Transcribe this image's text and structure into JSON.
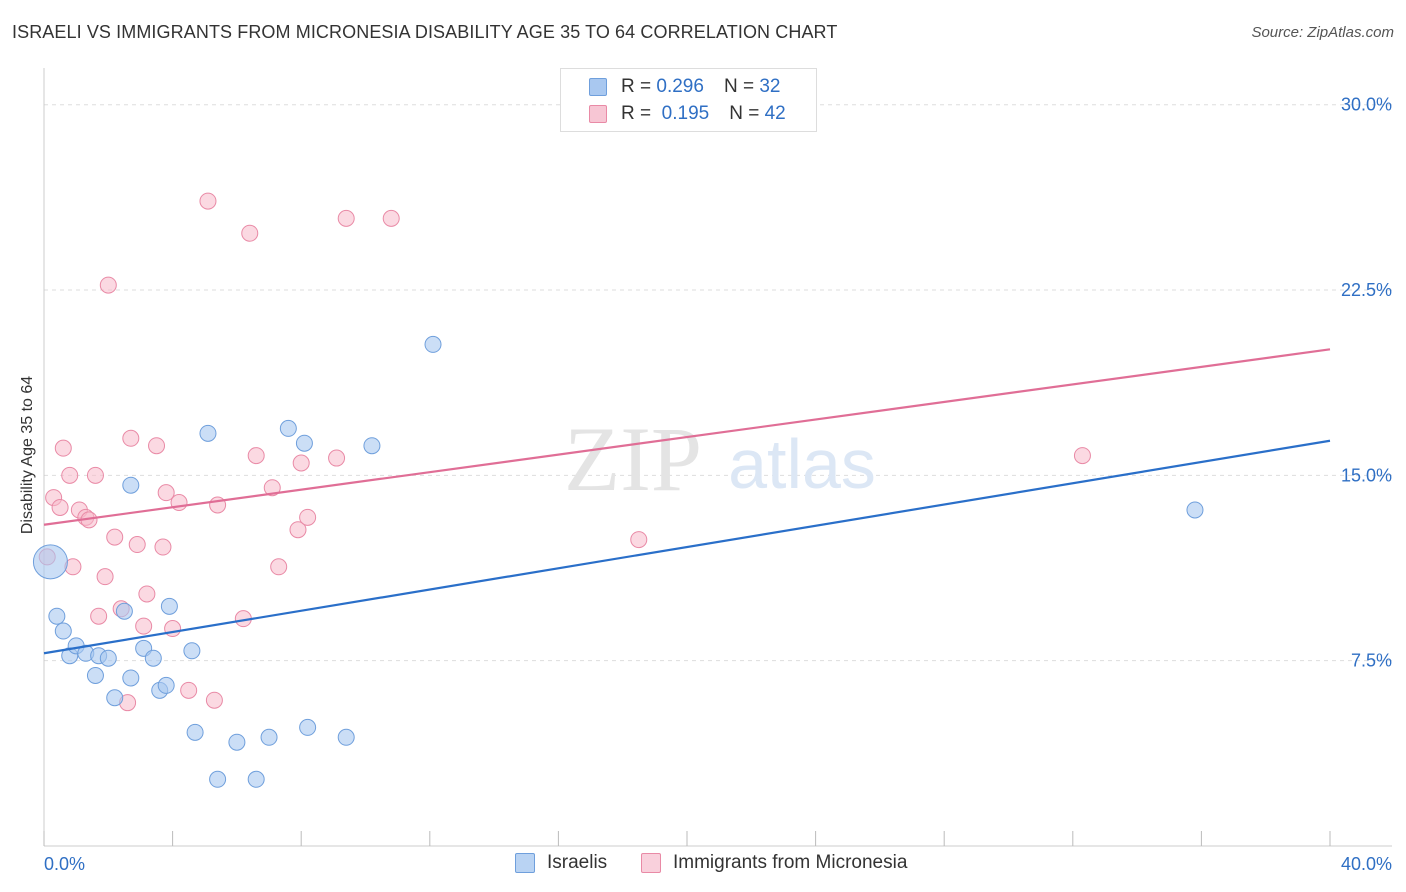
{
  "header": {
    "title": "ISRAELI VS IMMIGRANTS FROM MICRONESIA DISABILITY AGE 35 TO 64 CORRELATION CHART",
    "source": "Source: ZipAtlas.com"
  },
  "legend": {
    "r_label": "R =",
    "n_label": "N =",
    "series": [
      {
        "name": "Israelis",
        "r": "0.296",
        "n": "32"
      },
      {
        "name": "Immigrants from Micronesia",
        "r": "0.195",
        "n": "42"
      }
    ]
  },
  "watermark": {
    "zip": "ZIP",
    "atlas": "atlas"
  },
  "colors": {
    "blue_fill": "#a9c8f0",
    "blue_stroke": "#6f9fdc",
    "blue_line": "#2a6fc9",
    "pink_fill": "#f7b9cb",
    "pink_stroke": "#e98aa6",
    "pink_line": "#e06e96",
    "value_text": "#2f6fc4",
    "grid": "#dddddd"
  },
  "chart_data": {
    "type": "scatter",
    "title": "ISRAELI VS IMMIGRANTS FROM MICRONESIA DISABILITY AGE 35 TO 64 CORRELATION CHART",
    "xlabel": "",
    "ylabel": "Disability Age 35 to 64",
    "xlim": [
      0,
      40
    ],
    "ylim": [
      0,
      31
    ],
    "x_tick_labels": [
      {
        "value": 0,
        "label": "0.0%"
      },
      {
        "value": 40,
        "label": "40.0%"
      }
    ],
    "y_tick_labels": [
      {
        "value": 7.5,
        "label": "7.5%"
      },
      {
        "value": 15.0,
        "label": "15.0%"
      },
      {
        "value": 22.5,
        "label": "22.5%"
      },
      {
        "value": 30.0,
        "label": "30.0%"
      }
    ],
    "x_minor_ticks": [
      0,
      4,
      8,
      12,
      16,
      20,
      24,
      28,
      32,
      36,
      40
    ],
    "series": [
      {
        "name": "Israelis",
        "color": "blue",
        "trend": {
          "x": [
            0,
            40
          ],
          "y": [
            7.8,
            16.4
          ]
        },
        "points": [
          {
            "x": 0.2,
            "y": 11.5,
            "big": true
          },
          {
            "x": 0.4,
            "y": 9.3
          },
          {
            "x": 0.6,
            "y": 8.7
          },
          {
            "x": 0.8,
            "y": 7.7
          },
          {
            "x": 1.0,
            "y": 8.1
          },
          {
            "x": 1.3,
            "y": 7.8
          },
          {
            "x": 1.7,
            "y": 7.7
          },
          {
            "x": 2.0,
            "y": 7.6
          },
          {
            "x": 1.6,
            "y": 6.9
          },
          {
            "x": 2.2,
            "y": 6.0
          },
          {
            "x": 2.5,
            "y": 9.5
          },
          {
            "x": 2.7,
            "y": 6.8
          },
          {
            "x": 3.1,
            "y": 8.0
          },
          {
            "x": 3.4,
            "y": 7.6
          },
          {
            "x": 3.6,
            "y": 6.3
          },
          {
            "x": 3.8,
            "y": 6.5
          },
          {
            "x": 3.9,
            "y": 9.7
          },
          {
            "x": 4.6,
            "y": 7.9
          },
          {
            "x": 4.7,
            "y": 4.6
          },
          {
            "x": 5.1,
            "y": 16.7
          },
          {
            "x": 6.0,
            "y": 4.2
          },
          {
            "x": 7.0,
            "y": 4.4
          },
          {
            "x": 7.6,
            "y": 16.9
          },
          {
            "x": 8.2,
            "y": 4.8
          },
          {
            "x": 8.1,
            "y": 16.3
          },
          {
            "x": 9.4,
            "y": 4.4
          },
          {
            "x": 10.2,
            "y": 16.2
          },
          {
            "x": 12.1,
            "y": 20.3
          },
          {
            "x": 2.7,
            "y": 14.6
          },
          {
            "x": 5.4,
            "y": 2.7
          },
          {
            "x": 6.6,
            "y": 2.7
          },
          {
            "x": 35.8,
            "y": 13.6
          }
        ]
      },
      {
        "name": "Immigrants from Micronesia",
        "color": "pink",
        "trend": {
          "x": [
            0,
            40
          ],
          "y": [
            13.0,
            20.1
          ]
        },
        "points": [
          {
            "x": 0.1,
            "y": 11.7
          },
          {
            "x": 0.3,
            "y": 14.1
          },
          {
            "x": 0.5,
            "y": 13.7
          },
          {
            "x": 0.6,
            "y": 16.1
          },
          {
            "x": 0.8,
            "y": 15.0
          },
          {
            "x": 0.9,
            "y": 11.3
          },
          {
            "x": 1.1,
            "y": 13.6
          },
          {
            "x": 1.3,
            "y": 13.3
          },
          {
            "x": 1.4,
            "y": 13.2
          },
          {
            "x": 1.6,
            "y": 15.0
          },
          {
            "x": 1.7,
            "y": 9.3
          },
          {
            "x": 1.9,
            "y": 10.9
          },
          {
            "x": 2.0,
            "y": 22.7
          },
          {
            "x": 2.2,
            "y": 12.5
          },
          {
            "x": 2.4,
            "y": 9.6
          },
          {
            "x": 2.6,
            "y": 5.8
          },
          {
            "x": 2.7,
            "y": 16.5
          },
          {
            "x": 2.9,
            "y": 12.2
          },
          {
            "x": 3.2,
            "y": 10.2
          },
          {
            "x": 3.1,
            "y": 8.9
          },
          {
            "x": 3.5,
            "y": 16.2
          },
          {
            "x": 3.7,
            "y": 12.1
          },
          {
            "x": 3.8,
            "y": 14.3
          },
          {
            "x": 4.0,
            "y": 8.8
          },
          {
            "x": 4.2,
            "y": 13.9
          },
          {
            "x": 4.5,
            "y": 6.3
          },
          {
            "x": 5.1,
            "y": 26.1
          },
          {
            "x": 5.3,
            "y": 5.9
          },
          {
            "x": 5.4,
            "y": 13.8
          },
          {
            "x": 6.2,
            "y": 9.2
          },
          {
            "x": 6.4,
            "y": 24.8
          },
          {
            "x": 6.6,
            "y": 15.8
          },
          {
            "x": 7.1,
            "y": 14.5
          },
          {
            "x": 7.3,
            "y": 11.3
          },
          {
            "x": 7.9,
            "y": 12.8
          },
          {
            "x": 8.0,
            "y": 15.5
          },
          {
            "x": 8.2,
            "y": 13.3
          },
          {
            "x": 9.1,
            "y": 15.7
          },
          {
            "x": 9.4,
            "y": 25.4
          },
          {
            "x": 10.8,
            "y": 25.4
          },
          {
            "x": 18.5,
            "y": 12.4
          },
          {
            "x": 32.3,
            "y": 15.8
          }
        ]
      }
    ]
  }
}
